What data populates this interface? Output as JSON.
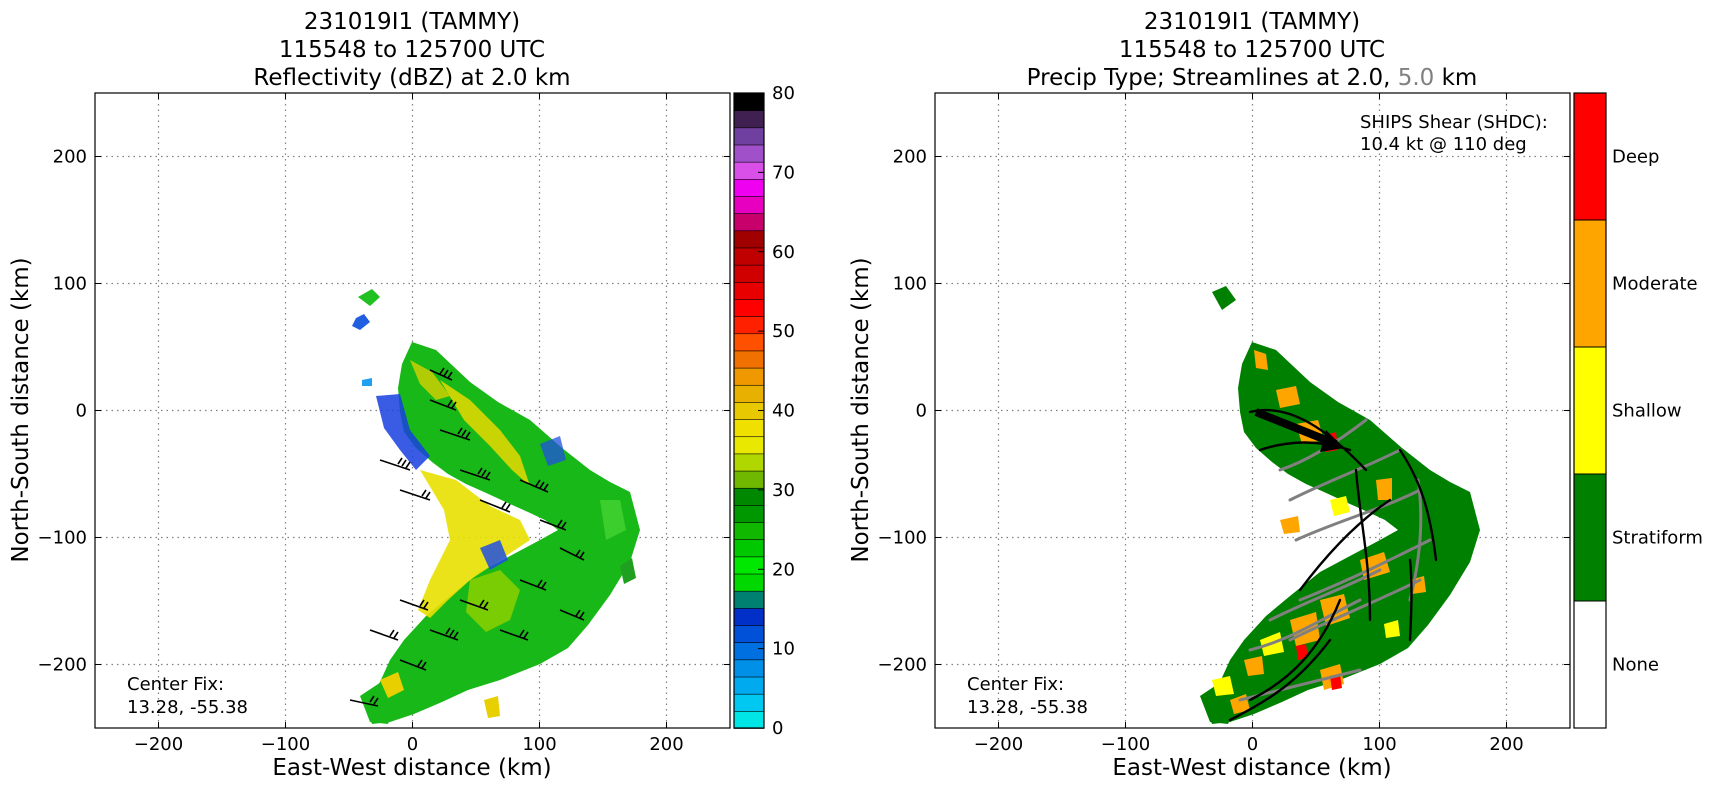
{
  "panels": [
    {
      "title_lines": [
        "231019I1 (TAMMY)",
        "115548 to 125700 UTC",
        "Reflectivity (dBZ) at 2.0 km"
      ],
      "xlabel": "East-West distance (km)",
      "ylabel": "North-South distance (km)",
      "annotation": [
        "Center Fix:",
        "13.28, -55.38"
      ]
    },
    {
      "title_lines": [
        "231019I1 (TAMMY)",
        "115548 to 125700 UTC"
      ],
      "title3_prefix": "Precip Type; Streamlines at 2.0,",
      "title3_gray": "5.0",
      "title3_suffix": "km",
      "xlabel": "East-West distance (km)",
      "ylabel": "North-South distance (km)",
      "annotation": [
        "Center Fix:",
        "13.28, -55.38"
      ],
      "shear_text": [
        "SHIPS Shear (SHDC):",
        "10.4 kt @ 110 deg"
      ]
    }
  ],
  "colors": {
    "dbz_scale": [
      "#00e5e5",
      "#00c8f0",
      "#00aaee",
      "#0090e8",
      "#0070e0",
      "#0050d8",
      "#0030c8",
      "#008070",
      "#00d800",
      "#00e800",
      "#00c800",
      "#10b800",
      "#009800",
      "#008800",
      "#70b800",
      "#b0d800",
      "#e8e800",
      "#f0e000",
      "#e8c800",
      "#e8b000",
      "#f09800",
      "#f07000",
      "#ff5000",
      "#ff2000",
      "#ff0000",
      "#e80000",
      "#d00000",
      "#c00000",
      "#a00000",
      "#c8006c",
      "#e800c0",
      "#f000f0",
      "#d850e8",
      "#a050c8",
      "#7040a0",
      "#402050",
      "#000000"
    ],
    "precip": {
      "none": "#ffffff",
      "stratiform": "#008000",
      "shallow": "#ffff00",
      "moderate": "#ffa500",
      "deep": "#ff0000"
    },
    "stream_2km": "#000000",
    "stream_5km": "#808080"
  },
  "chart_data": [
    {
      "type": "heatmap",
      "title": "231019I1 (TAMMY) 115548 to 125700 UTC Reflectivity (dBZ) at 2.0 km",
      "xlabel": "East-West distance (km)",
      "ylabel": "North-South distance (km)",
      "xlim": [
        -250,
        250
      ],
      "ylim": [
        -250,
        250
      ],
      "xticks": [
        -200,
        -100,
        0,
        100,
        200
      ],
      "yticks": [
        -200,
        -100,
        0,
        100,
        200
      ],
      "grid": true,
      "colorbar": {
        "label": "dBZ",
        "min": 0,
        "max": 80,
        "ticks": [
          0,
          10,
          20,
          30,
          40,
          50,
          60,
          70,
          80
        ]
      },
      "overlay": "wind barbs at 2.0 km",
      "center_fix": "13.28, -55.38"
    },
    {
      "type": "heatmap",
      "title": "231019I1 (TAMMY) 115548 to 125700 UTC Precip Type; Streamlines at 2.0, 5.0 km",
      "xlabel": "East-West distance (km)",
      "ylabel": "North-South distance (km)",
      "xlim": [
        -250,
        250
      ],
      "ylim": [
        -250,
        250
      ],
      "xticks": [
        -200,
        -100,
        0,
        100,
        200
      ],
      "yticks": [
        -200,
        -100,
        0,
        100,
        200
      ],
      "grid": true,
      "categories": [
        "None",
        "Stratiform",
        "Shallow",
        "Moderate",
        "Deep"
      ],
      "overlay": "streamlines at 2.0 km (black) and 5.0 km (gray)",
      "shear": {
        "label": "SHIPS Shear (SHDC)",
        "speed_kt": 10.4,
        "direction_deg": 110
      },
      "center_fix": "13.28, -55.38"
    }
  ]
}
